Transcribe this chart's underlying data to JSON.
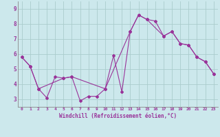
{
  "xlabel": "Windchill (Refroidissement éolien,°C)",
  "bg_color": "#cce8ec",
  "grid_color": "#aacccc",
  "line_color": "#993399",
  "xlim": [
    -0.5,
    23.5
  ],
  "ylim": [
    2.5,
    9.5
  ],
  "xticks": [
    0,
    1,
    2,
    3,
    4,
    5,
    6,
    7,
    8,
    9,
    10,
    11,
    12,
    13,
    14,
    15,
    16,
    17,
    18,
    19,
    20,
    21,
    22,
    23
  ],
  "yticks": [
    3,
    4,
    5,
    6,
    7,
    8,
    9
  ],
  "series1_x": [
    0,
    1,
    2,
    3,
    4,
    5,
    6,
    7,
    8,
    9,
    10,
    11,
    12,
    13,
    14,
    15,
    16,
    17,
    18,
    19,
    20,
    21,
    22,
    23
  ],
  "series1_y": [
    5.8,
    5.2,
    3.7,
    3.1,
    4.5,
    4.4,
    4.5,
    2.9,
    3.2,
    3.2,
    3.7,
    5.9,
    3.5,
    7.5,
    8.6,
    8.3,
    8.2,
    7.2,
    7.5,
    6.7,
    6.6,
    5.8,
    5.5,
    4.7
  ],
  "series2_x": [
    0,
    1,
    2,
    5,
    6,
    10,
    13,
    14,
    15,
    17,
    18,
    19,
    20,
    21,
    22,
    23
  ],
  "series2_y": [
    5.8,
    5.2,
    3.7,
    4.4,
    4.5,
    3.7,
    7.5,
    8.6,
    8.3,
    7.2,
    7.5,
    6.7,
    6.6,
    5.8,
    5.5,
    4.7
  ],
  "font_family": "monospace"
}
